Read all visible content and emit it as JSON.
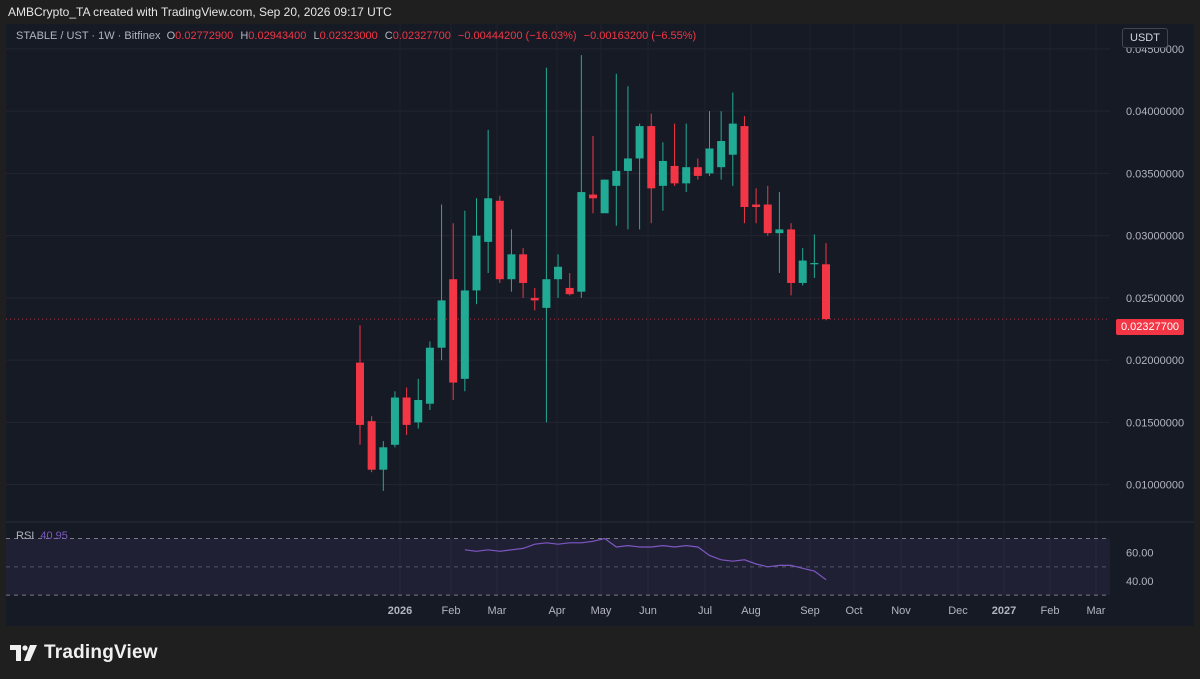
{
  "header": {
    "credit": "AMBCrypto_TA created with TradingView.com, Sep 20, 2026 09:17 UTC"
  },
  "legend": {
    "symbol": "STABLE / UST · 1W · Bitfinex",
    "o_label": "O",
    "o": "0.02772900",
    "h_label": "H",
    "h": "0.02943400",
    "l_label": "L",
    "l": "0.02323000",
    "c_label": "C",
    "c": "0.02327700",
    "change": "−0.00444200 (−16.03%)",
    "change2": "−0.00163200 (−6.55%)"
  },
  "currency_button": "USDT",
  "current_price_label": "0.02327700",
  "rsi": {
    "label": "RSI",
    "value": "40.95"
  },
  "footer": {
    "logo_text": "TradingView"
  },
  "colors": {
    "up": "#22ab94",
    "down": "#f23645",
    "rsi_line": "#7e57c2",
    "background": "#161a25"
  },
  "chart_data": {
    "type": "candlestick",
    "y_ticks": [
      "0.04500000",
      "0.04000000",
      "0.03500000",
      "0.03000000",
      "0.02500000",
      "0.02000000",
      "0.01500000",
      "0.01000000"
    ],
    "ylim": [
      0.007,
      0.047
    ],
    "x_ticks": [
      "2026",
      "Feb",
      "Mar",
      "Apr",
      "May",
      "Jun",
      "Jul",
      "Aug",
      "Sep",
      "Oct",
      "Nov",
      "Dec",
      "2027",
      "Feb",
      "Mar"
    ],
    "candles": [
      {
        "o": 0.0198,
        "h": 0.0228,
        "l": 0.0132,
        "c": 0.0148
      },
      {
        "o": 0.0151,
        "h": 0.0155,
        "l": 0.011,
        "c": 0.0112
      },
      {
        "o": 0.0112,
        "h": 0.0135,
        "l": 0.0095,
        "c": 0.013
      },
      {
        "o": 0.0132,
        "h": 0.0175,
        "l": 0.013,
        "c": 0.017
      },
      {
        "o": 0.017,
        "h": 0.0178,
        "l": 0.014,
        "c": 0.0148
      },
      {
        "o": 0.015,
        "h": 0.0185,
        "l": 0.0145,
        "c": 0.0168
      },
      {
        "o": 0.0165,
        "h": 0.0215,
        "l": 0.016,
        "c": 0.021
      },
      {
        "o": 0.021,
        "h": 0.0325,
        "l": 0.02,
        "c": 0.0248
      },
      {
        "o": 0.0265,
        "h": 0.031,
        "l": 0.0168,
        "c": 0.0182
      },
      {
        "o": 0.0185,
        "h": 0.032,
        "l": 0.0175,
        "c": 0.0256
      },
      {
        "o": 0.0256,
        "h": 0.033,
        "l": 0.0245,
        "c": 0.03
      },
      {
        "o": 0.0295,
        "h": 0.0385,
        "l": 0.027,
        "c": 0.033
      },
      {
        "o": 0.0328,
        "h": 0.0332,
        "l": 0.0262,
        "c": 0.0265
      },
      {
        "o": 0.0265,
        "h": 0.0305,
        "l": 0.0255,
        "c": 0.0285
      },
      {
        "o": 0.0285,
        "h": 0.029,
        "l": 0.025,
        "c": 0.0262
      },
      {
        "o": 0.025,
        "h": 0.0258,
        "l": 0.024,
        "c": 0.0248
      },
      {
        "o": 0.0242,
        "h": 0.0435,
        "l": 0.015,
        "c": 0.0265
      },
      {
        "o": 0.0265,
        "h": 0.0285,
        "l": 0.025,
        "c": 0.0275
      },
      {
        "o": 0.0258,
        "h": 0.027,
        "l": 0.0252,
        "c": 0.0253
      },
      {
        "o": 0.0255,
        "h": 0.0445,
        "l": 0.025,
        "c": 0.0335
      },
      {
        "o": 0.0333,
        "h": 0.038,
        "l": 0.0318,
        "c": 0.033
      },
      {
        "o": 0.0318,
        "h": 0.0345,
        "l": 0.032,
        "c": 0.0345
      },
      {
        "o": 0.034,
        "h": 0.043,
        "l": 0.0308,
        "c": 0.0352
      },
      {
        "o": 0.0352,
        "h": 0.042,
        "l": 0.0305,
        "c": 0.0362
      },
      {
        "o": 0.0362,
        "h": 0.039,
        "l": 0.0305,
        "c": 0.0388
      },
      {
        "o": 0.0388,
        "h": 0.0398,
        "l": 0.031,
        "c": 0.0338
      },
      {
        "o": 0.034,
        "h": 0.0375,
        "l": 0.032,
        "c": 0.036
      },
      {
        "o": 0.0356,
        "h": 0.039,
        "l": 0.034,
        "c": 0.0342
      },
      {
        "o": 0.0342,
        "h": 0.039,
        "l": 0.0335,
        "c": 0.0355
      },
      {
        "o": 0.0355,
        "h": 0.0362,
        "l": 0.0345,
        "c": 0.0348
      },
      {
        "o": 0.035,
        "h": 0.04,
        "l": 0.0348,
        "c": 0.037
      },
      {
        "o": 0.0355,
        "h": 0.04,
        "l": 0.0345,
        "c": 0.0376
      },
      {
        "o": 0.0365,
        "h": 0.0415,
        "l": 0.034,
        "c": 0.039
      },
      {
        "o": 0.0388,
        "h": 0.0396,
        "l": 0.031,
        "c": 0.0323
      },
      {
        "o": 0.0325,
        "h": 0.0338,
        "l": 0.031,
        "c": 0.0323
      },
      {
        "o": 0.0325,
        "h": 0.034,
        "l": 0.03,
        "c": 0.0302
      },
      {
        "o": 0.0302,
        "h": 0.0335,
        "l": 0.027,
        "c": 0.0305
      },
      {
        "o": 0.0305,
        "h": 0.031,
        "l": 0.0252,
        "c": 0.0262
      },
      {
        "o": 0.0262,
        "h": 0.029,
        "l": 0.026,
        "c": 0.028
      },
      {
        "o": 0.0277,
        "h": 0.0301,
        "l": 0.0266,
        "c": 0.0278
      },
      {
        "o": 0.0277,
        "h": 0.0294,
        "l": 0.0232,
        "c": 0.0233
      }
    ],
    "rsi": {
      "ylim": [
        28,
        76
      ],
      "band": [
        30,
        70
      ],
      "ticks": [
        "60.00",
        "40.00"
      ],
      "values": [
        62,
        61,
        62,
        61,
        62,
        63,
        66,
        67,
        66,
        67,
        67,
        68,
        70,
        64,
        65,
        64,
        64,
        65,
        64,
        65,
        64,
        58,
        55,
        54,
        55,
        52,
        50,
        51,
        51,
        49,
        47,
        40.95
      ]
    }
  }
}
